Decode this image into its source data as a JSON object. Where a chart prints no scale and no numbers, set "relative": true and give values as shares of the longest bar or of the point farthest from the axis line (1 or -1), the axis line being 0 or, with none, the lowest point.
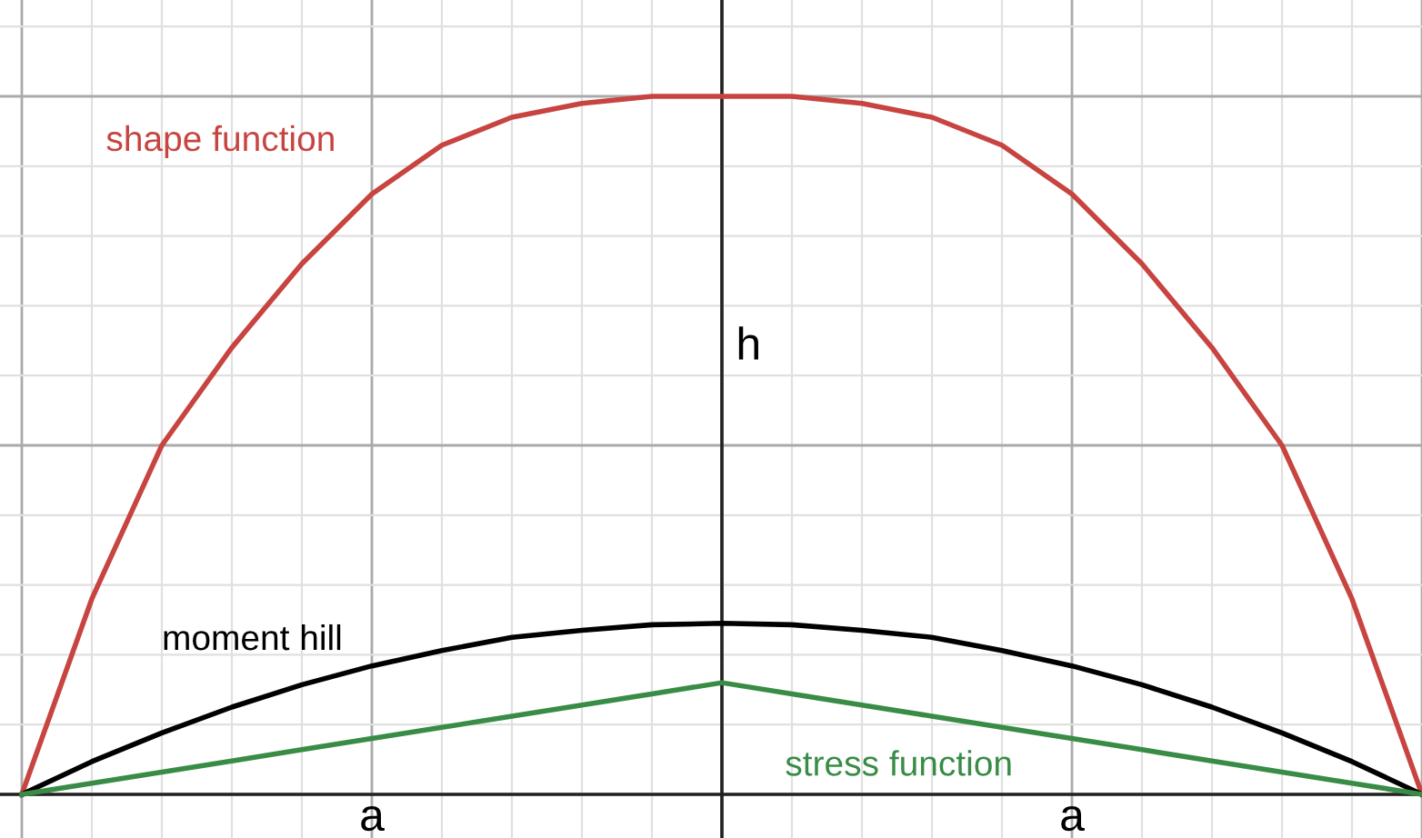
{
  "chart_data": {
    "type": "line",
    "relative": true,
    "grid": true,
    "legend": false,
    "marker": "none",
    "line_style": "solid",
    "categories": [
      null,
      null,
      null,
      null,
      null,
      null,
      null,
      null,
      null,
      null,
      null,
      null,
      null,
      null,
      null,
      null,
      null,
      null,
      null,
      null,
      null
    ],
    "series": [
      {
        "name": "shape function",
        "color": "#c74440",
        "values": [
          0,
          0.28,
          0.5,
          0.64,
          0.76,
          0.86,
          0.93,
          0.97,
          0.99,
          1.0,
          1.0,
          1.0,
          0.99,
          0.97,
          0.93,
          0.86,
          0.76,
          0.64,
          0.5,
          0.28,
          0
        ]
      },
      {
        "name": "moment hill",
        "color": "#000000",
        "values": [
          0,
          0.047,
          0.088,
          0.125,
          0.157,
          0.184,
          0.206,
          0.225,
          0.235,
          0.243,
          0.245,
          0.243,
          0.235,
          0.225,
          0.206,
          0.184,
          0.157,
          0.125,
          0.088,
          0.047,
          0
        ]
      },
      {
        "name": "stress function",
        "color": "#388c46",
        "values": [
          0,
          0.016,
          0.032,
          0.048,
          0.064,
          0.08,
          0.096,
          0.112,
          0.128,
          0.144,
          0.16,
          0.144,
          0.128,
          0.112,
          0.096,
          0.08,
          0.064,
          0.048,
          0.032,
          0.016,
          0
        ]
      }
    ],
    "annotations": [
      "h",
      "a",
      "a"
    ]
  }
}
